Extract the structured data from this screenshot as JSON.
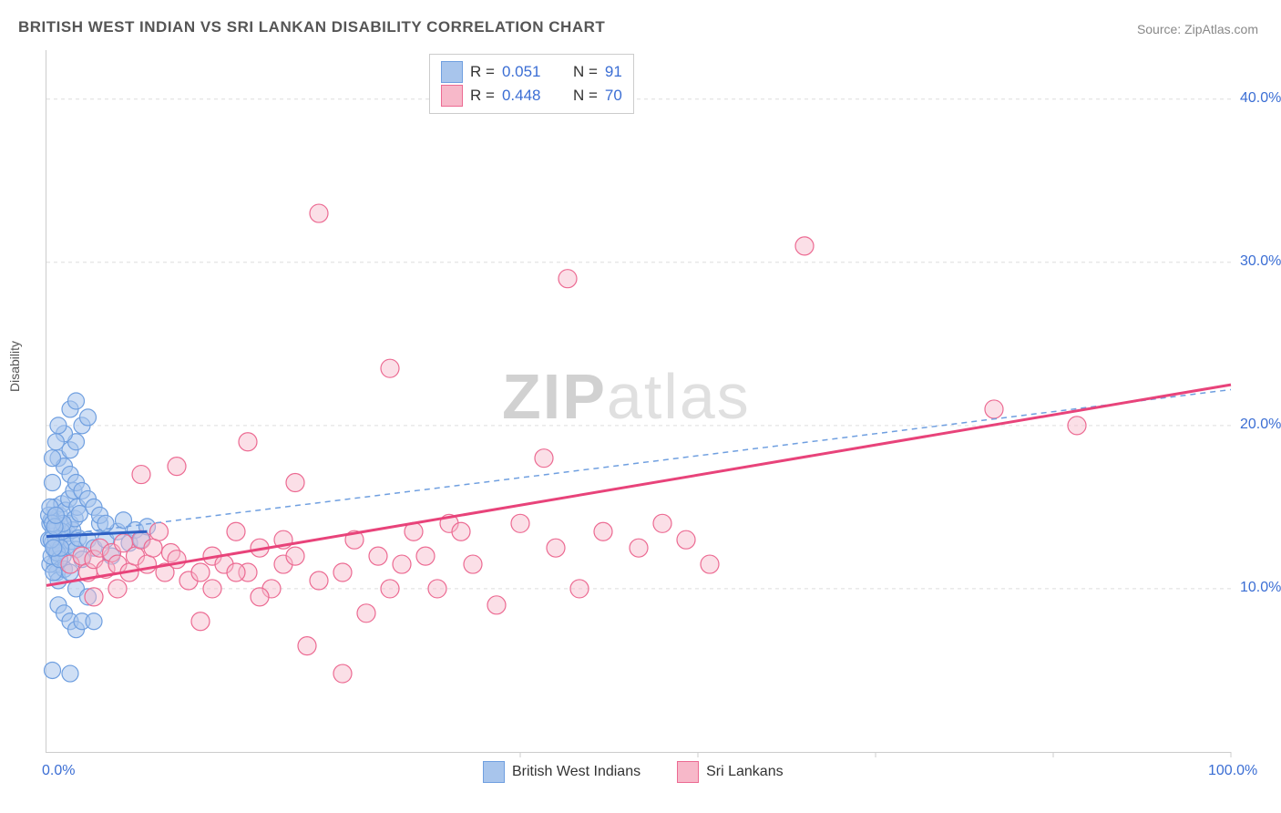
{
  "title": "BRITISH WEST INDIAN VS SRI LANKAN DISABILITY CORRELATION CHART",
  "source": "Source: ZipAtlas.com",
  "ylabel": "Disability",
  "watermark_zip": "ZIP",
  "watermark_atlas": "atlas",
  "chart": {
    "type": "scatter",
    "xlim": [
      0,
      100
    ],
    "ylim": [
      0,
      43
    ],
    "yticks": [
      10,
      20,
      30,
      40
    ],
    "ytick_labels": [
      "10.0%",
      "20.0%",
      "30.0%",
      "40.0%"
    ],
    "xticks": [
      0,
      100
    ],
    "xtick_labels": [
      "0.0%",
      "100.0%"
    ],
    "xtick_marks": [
      40,
      55,
      70,
      85,
      100
    ],
    "grid_color": "#dddddd",
    "axis_color": "#cccccc",
    "tick_label_color": "#3b6ed4",
    "background": "#ffffff",
    "series": [
      {
        "name": "British West Indians",
        "color_fill": "#a8c5ec",
        "color_stroke": "#6f9fe0",
        "fill_opacity": 0.55,
        "marker_radius": 9,
        "R": 0.051,
        "N": 91,
        "trend": {
          "x1": 0,
          "y1": 13.2,
          "x2": 8.5,
          "y2": 13.5,
          "solid_color": "#2d5fc4",
          "solid_width": 3,
          "dash_x1": 0,
          "dash_y1": 13.2,
          "dash_x2": 100,
          "dash_y2": 22.2,
          "dash_color": "#6f9fe0",
          "dash_width": 1.5
        },
        "points": [
          [
            0.2,
            13
          ],
          [
            0.3,
            14
          ],
          [
            0.5,
            12.8
          ],
          [
            0.6,
            13.5
          ],
          [
            0.8,
            12.2
          ],
          [
            0.4,
            14.2
          ],
          [
            0.7,
            15
          ],
          [
            0.9,
            13.8
          ],
          [
            1.0,
            12.5
          ],
          [
            1.1,
            14.5
          ],
          [
            1.2,
            13.2
          ],
          [
            1.3,
            15.2
          ],
          [
            1.4,
            12.0
          ],
          [
            1.5,
            13.9
          ],
          [
            1.6,
            14.8
          ],
          [
            1.7,
            12.6
          ],
          [
            1.8,
            13.4
          ],
          [
            1.9,
            15.5
          ],
          [
            2.0,
            14.0
          ],
          [
            2.1,
            12.9
          ],
          [
            2.2,
            13.6
          ],
          [
            2.3,
            16.0
          ],
          [
            2.4,
            14.3
          ],
          [
            2.5,
            12.4
          ],
          [
            2.6,
            15.0
          ],
          [
            2.7,
            13.1
          ],
          [
            2.8,
            14.6
          ],
          [
            0.5,
            16.5
          ],
          [
            0.7,
            11.5
          ],
          [
            0.9,
            11.0
          ],
          [
            1.0,
            10.5
          ],
          [
            1.5,
            11.2
          ],
          [
            2.0,
            11.0
          ],
          [
            2.5,
            10.0
          ],
          [
            3.0,
            11.8
          ],
          [
            3.5,
            13.0
          ],
          [
            4.0,
            12.5
          ],
          [
            4.5,
            14.0
          ],
          [
            5.0,
            13.0
          ],
          [
            5.5,
            12.0
          ],
          [
            6.0,
            13.5
          ],
          [
            6.5,
            14.2
          ],
          [
            7.0,
            12.8
          ],
          [
            7.5,
            13.6
          ],
          [
            8.0,
            13.0
          ],
          [
            8.5,
            13.8
          ],
          [
            1.0,
            18.0
          ],
          [
            1.5,
            17.5
          ],
          [
            2.0,
            18.5
          ],
          [
            2.5,
            19.0
          ],
          [
            3.0,
            20.0
          ],
          [
            3.5,
            20.5
          ],
          [
            2.0,
            21.0
          ],
          [
            2.5,
            21.5
          ],
          [
            1.5,
            19.5
          ],
          [
            1.0,
            20.0
          ],
          [
            0.8,
            19.0
          ],
          [
            0.5,
            18.0
          ],
          [
            2.0,
            17.0
          ],
          [
            2.5,
            16.5
          ],
          [
            3.0,
            16.0
          ],
          [
            3.5,
            15.5
          ],
          [
            4.0,
            15.0
          ],
          [
            4.5,
            14.5
          ],
          [
            5.0,
            14.0
          ],
          [
            1.0,
            9.0
          ],
          [
            1.5,
            8.5
          ],
          [
            2.0,
            8.0
          ],
          [
            2.5,
            7.5
          ],
          [
            3.0,
            8.0
          ],
          [
            3.5,
            9.5
          ],
          [
            0.5,
            5.0
          ],
          [
            2.0,
            4.8
          ],
          [
            4.0,
            8.0
          ],
          [
            0.3,
            11.5
          ],
          [
            0.4,
            12.0
          ],
          [
            0.6,
            11.0
          ],
          [
            0.7,
            12.5
          ],
          [
            0.8,
            13.0
          ],
          [
            0.9,
            12.2
          ],
          [
            1.1,
            11.8
          ],
          [
            1.2,
            12.5
          ],
          [
            1.3,
            13.5
          ],
          [
            1.4,
            14.0
          ],
          [
            0.2,
            14.5
          ],
          [
            0.3,
            15.0
          ],
          [
            0.4,
            13.0
          ],
          [
            0.5,
            14.0
          ],
          [
            0.6,
            12.5
          ],
          [
            0.7,
            13.8
          ],
          [
            0.8,
            14.5
          ]
        ]
      },
      {
        "name": "Sri Lankans",
        "color_fill": "#f7b8c9",
        "color_stroke": "#ec6a92",
        "fill_opacity": 0.45,
        "marker_radius": 10,
        "R": 0.448,
        "N": 70,
        "trend": {
          "x1": 0,
          "y1": 10.2,
          "x2": 100,
          "y2": 22.5,
          "solid_color": "#e8437a",
          "solid_width": 3,
          "dash_x1": 0,
          "dash_y1": 10.2,
          "dash_x2": 100,
          "dash_y2": 22.5,
          "dash_color": "#e8437a",
          "dash_width": 0
        },
        "points": [
          [
            2,
            11.5
          ],
          [
            3,
            12.0
          ],
          [
            3.5,
            11.0
          ],
          [
            4,
            11.8
          ],
          [
            4.5,
            12.5
          ],
          [
            5,
            11.2
          ],
          [
            5.5,
            12.2
          ],
          [
            6,
            11.5
          ],
          [
            6.5,
            12.8
          ],
          [
            7,
            11.0
          ],
          [
            7.5,
            12.0
          ],
          [
            8,
            13.0
          ],
          [
            8.5,
            11.5
          ],
          [
            9,
            12.5
          ],
          [
            9.5,
            13.5
          ],
          [
            10,
            11.0
          ],
          [
            10.5,
            12.2
          ],
          [
            11,
            11.8
          ],
          [
            12,
            10.5
          ],
          [
            13,
            11.0
          ],
          [
            14,
            12.0
          ],
          [
            15,
            11.5
          ],
          [
            16,
            13.5
          ],
          [
            17,
            11.0
          ],
          [
            18,
            12.5
          ],
          [
            19,
            10.0
          ],
          [
            20,
            11.5
          ],
          [
            21,
            12.0
          ],
          [
            22,
            6.5
          ],
          [
            23,
            10.5
          ],
          [
            13,
            8.0
          ],
          [
            17,
            19.0
          ],
          [
            21,
            16.5
          ],
          [
            25,
            11.0
          ],
          [
            26,
            13.0
          ],
          [
            27,
            8.5
          ],
          [
            28,
            12.0
          ],
          [
            29,
            10.0
          ],
          [
            30,
            11.5
          ],
          [
            31,
            13.5
          ],
          [
            32,
            12.0
          ],
          [
            33,
            10.0
          ],
          [
            34,
            14.0
          ],
          [
            35,
            13.5
          ],
          [
            36,
            11.5
          ],
          [
            38,
            9.0
          ],
          [
            40,
            14.0
          ],
          [
            42,
            18.0
          ],
          [
            43,
            12.5
          ],
          [
            44,
            29.0
          ],
          [
            45,
            10.0
          ],
          [
            47,
            13.5
          ],
          [
            50,
            12.5
          ],
          [
            52,
            14.0
          ],
          [
            54,
            13.0
          ],
          [
            56,
            11.5
          ],
          [
            23,
            33.0
          ],
          [
            25,
            4.8
          ],
          [
            29,
            23.5
          ],
          [
            64,
            31.0
          ],
          [
            80,
            21.0
          ],
          [
            87,
            20.0
          ],
          [
            11,
            17.5
          ],
          [
            8,
            17.0
          ],
          [
            6,
            10.0
          ],
          [
            4,
            9.5
          ],
          [
            14,
            10.0
          ],
          [
            16,
            11.0
          ],
          [
            18,
            9.5
          ],
          [
            20,
            13.0
          ]
        ]
      }
    ],
    "top_legend": {
      "rows": [
        {
          "swatch_fill": "#a8c5ec",
          "swatch_stroke": "#6f9fe0",
          "R_label": "R =",
          "R": "0.051",
          "N_label": "N =",
          "N": "91"
        },
        {
          "swatch_fill": "#f7b8c9",
          "swatch_stroke": "#ec6a92",
          "R_label": "R =",
          "R": "0.448",
          "N_label": "N =",
          "N": "70"
        }
      ]
    },
    "bottom_legend": {
      "items": [
        {
          "swatch_fill": "#a8c5ec",
          "swatch_stroke": "#6f9fe0",
          "label": "British West Indians"
        },
        {
          "swatch_fill": "#f7b8c9",
          "swatch_stroke": "#ec6a92",
          "label": "Sri Lankans"
        }
      ]
    }
  }
}
